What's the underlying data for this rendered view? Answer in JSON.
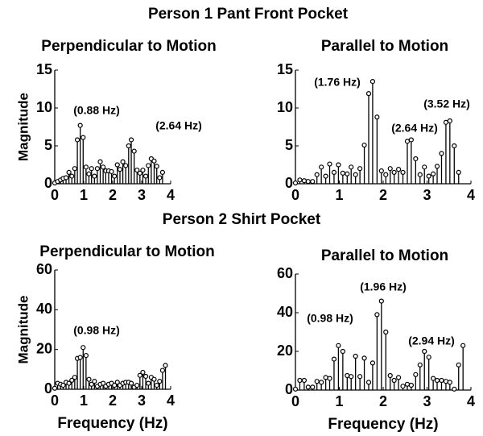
{
  "headings": [
    "Person 1 Pant Front Pocket",
    "Person 2 Shirt  Pocket"
  ],
  "chart_data": [
    {
      "type": "stem",
      "title": "Perpendicular to Motion",
      "ylabel": "Magnitude",
      "x": [
        0,
        0.1,
        0.2,
        0.29,
        0.39,
        0.49,
        0.59,
        0.69,
        0.78,
        0.88,
        0.98,
        1.08,
        1.18,
        1.27,
        1.37,
        1.47,
        1.57,
        1.67,
        1.76,
        1.86,
        1.96,
        2.06,
        2.16,
        2.25,
        2.35,
        2.45,
        2.55,
        2.64,
        2.74,
        2.84,
        2.94,
        3.04,
        3.14,
        3.23,
        3.33,
        3.43,
        3.52,
        3.62,
        3.72
      ],
      "values": [
        0.1,
        0.3,
        0.5,
        0.7,
        0.8,
        1.5,
        1.0,
        2.0,
        5.8,
        7.7,
        6.1,
        2.2,
        1.3,
        2.0,
        1.0,
        2.0,
        2.9,
        2.2,
        1.7,
        1.7,
        1.6,
        1.0,
        2.5,
        1.9,
        2.9,
        2.4,
        5.0,
        5.8,
        4.3,
        1.8,
        1.4,
        1.8,
        1.0,
        2.4,
        3.3,
        3.0,
        2.3,
        0.8,
        1.5
      ],
      "xlim": [
        0,
        4
      ],
      "ylim": [
        0,
        15
      ],
      "xticks": [
        0,
        1,
        2,
        3,
        4
      ],
      "yticks": [
        0,
        5,
        10,
        15
      ],
      "annotations": [
        "(0.88 Hz)",
        "(2.64 Hz)"
      ]
    },
    {
      "type": "stem",
      "title": "Parallel to Motion",
      "x": [
        0,
        0.1,
        0.2,
        0.29,
        0.39,
        0.49,
        0.59,
        0.69,
        0.78,
        0.88,
        0.98,
        1.08,
        1.18,
        1.27,
        1.37,
        1.47,
        1.57,
        1.67,
        1.76,
        1.86,
        1.96,
        2.06,
        2.16,
        2.25,
        2.35,
        2.45,
        2.55,
        2.64,
        2.74,
        2.84,
        2.94,
        3.04,
        3.14,
        3.23,
        3.33,
        3.43,
        3.52,
        3.62,
        3.72
      ],
      "values": [
        0.1,
        0.5,
        0.4,
        0.3,
        0.3,
        1.2,
        2.2,
        1.0,
        2.6,
        1.5,
        2.5,
        1.4,
        1.3,
        2.2,
        1.2,
        2.0,
        5.1,
        11.9,
        13.5,
        8.8,
        1.7,
        1.2,
        2.0,
        1.5,
        1.9,
        1.5,
        5.6,
        5.8,
        3.3,
        1.2,
        2.2,
        1.0,
        1.3,
        2.3,
        4.0,
        8.1,
        8.3,
        5.0,
        1.5
      ],
      "xlim": [
        0,
        4
      ],
      "ylim": [
        0,
        15
      ],
      "xticks": [
        0,
        1,
        2,
        3,
        4
      ],
      "yticks": [
        0,
        5,
        10,
        15
      ],
      "annotations": [
        "(1.76 Hz)",
        "(2.64 Hz)",
        "(3.52 Hz)"
      ]
    },
    {
      "type": "stem",
      "title": "Perpendicular to Motion",
      "ylabel": "Magnitude",
      "xlabel": "Frequency (Hz)",
      "x": [
        0,
        0.1,
        0.2,
        0.29,
        0.39,
        0.49,
        0.59,
        0.69,
        0.78,
        0.88,
        0.98,
        1.08,
        1.18,
        1.27,
        1.37,
        1.47,
        1.57,
        1.67,
        1.76,
        1.86,
        1.96,
        2.06,
        2.16,
        2.25,
        2.35,
        2.45,
        2.55,
        2.64,
        2.74,
        2.84,
        2.94,
        3.04,
        3.14,
        3.23,
        3.33,
        3.43,
        3.52,
        3.62,
        3.72,
        3.82
      ],
      "values": [
        0.5,
        3.0,
        2.5,
        2.0,
        3.5,
        3.0,
        4.5,
        6.0,
        15.5,
        16.0,
        21.0,
        17.0,
        5.0,
        2.5,
        4.0,
        1.5,
        2.5,
        3.0,
        1.5,
        2.5,
        3.0,
        2.0,
        3.5,
        2.0,
        3.0,
        3.5,
        3.5,
        3.0,
        1.0,
        2.0,
        7.0,
        8.5,
        6.5,
        3.0,
        6.0,
        5.0,
        2.0,
        4.0,
        9.5,
        12.0
      ],
      "xlim": [
        0,
        4
      ],
      "ylim": [
        0,
        60
      ],
      "xticks": [
        0,
        1,
        2,
        3,
        4
      ],
      "yticks": [
        0,
        20,
        40,
        60
      ],
      "annotations": [
        "(0.98 Hz)"
      ]
    },
    {
      "type": "stem",
      "title": "Parallel to Motion",
      "xlabel": "Frequency (Hz)",
      "x": [
        0,
        0.1,
        0.2,
        0.29,
        0.39,
        0.49,
        0.59,
        0.69,
        0.78,
        0.88,
        0.98,
        1.08,
        1.18,
        1.27,
        1.37,
        1.47,
        1.57,
        1.67,
        1.76,
        1.86,
        1.96,
        2.06,
        2.16,
        2.25,
        2.35,
        2.45,
        2.55,
        2.64,
        2.74,
        2.84,
        2.94,
        3.04,
        3.14,
        3.23,
        3.33,
        3.43,
        3.52,
        3.62,
        3.72,
        3.82
      ],
      "values": [
        0.5,
        5.0,
        5.0,
        1.5,
        1.5,
        4.5,
        4.0,
        6.5,
        6.0,
        16.0,
        23.0,
        20.0,
        7.5,
        7.0,
        17.5,
        7.0,
        16.5,
        4.0,
        14.0,
        39.0,
        46.0,
        30.0,
        7.5,
        5.0,
        6.5,
        2.0,
        3.0,
        2.5,
        8.0,
        13.0,
        20.0,
        17.0,
        6.0,
        5.0,
        5.0,
        4.5,
        4.0,
        0.5,
        13.0,
        23.0
      ],
      "xlim": [
        0,
        4
      ],
      "ylim": [
        0,
        60
      ],
      "xticks": [
        0,
        1,
        2,
        3,
        4
      ],
      "yticks": [
        0,
        20,
        40,
        60
      ],
      "annotations": [
        "(0.98 Hz)",
        "(1.96 Hz)",
        "(2.94 Hz)"
      ]
    }
  ]
}
